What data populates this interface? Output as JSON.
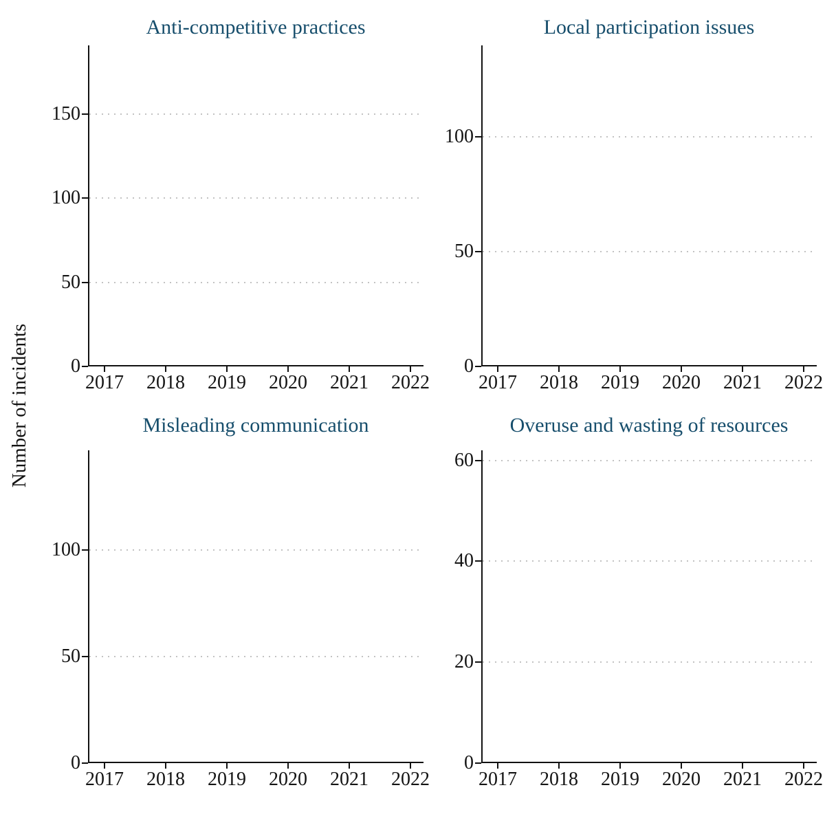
{
  "figure": {
    "ylabel": "Number of incidents",
    "background": "#ffffff",
    "title_color": "#174e6c",
    "axis_color": "#111111",
    "grid_color": "#c2c2c2",
    "tick_label_color": "#141414"
  },
  "chart_data": [
    {
      "type": "line",
      "title": "Anti-competitive practices",
      "xlabel": "",
      "x_tick_labels": [
        "2017",
        "2018",
        "2019",
        "2020",
        "2021",
        "2022"
      ],
      "yticks": [
        0,
        50,
        100,
        150
      ],
      "ylim": [
        0,
        191
      ],
      "grid": "horizontal-dotted",
      "legend": "none",
      "series": []
    },
    {
      "type": "line",
      "title": "Local participation issues",
      "xlabel": "",
      "x_tick_labels": [
        "2017",
        "2018",
        "2019",
        "2020",
        "2021",
        "2022"
      ],
      "yticks": [
        0,
        50,
        100
      ],
      "ylim": [
        0,
        140
      ],
      "grid": "horizontal-dotted",
      "legend": "none",
      "series": []
    },
    {
      "type": "line",
      "title": "Misleading communication",
      "xlabel": "",
      "x_tick_labels": [
        "2017",
        "2018",
        "2019",
        "2020",
        "2021",
        "2022"
      ],
      "yticks": [
        0,
        50,
        100
      ],
      "ylim": [
        0,
        147
      ],
      "grid": "horizontal-dotted",
      "legend": "none",
      "series": []
    },
    {
      "type": "line",
      "title": "Overuse and wasting of resources",
      "xlabel": "",
      "x_tick_labels": [
        "2017",
        "2018",
        "2019",
        "2020",
        "2021",
        "2022"
      ],
      "yticks": [
        0,
        20,
        40,
        60
      ],
      "ylim": [
        0,
        62
      ],
      "grid": "horizontal-dotted",
      "legend": "none",
      "series": []
    }
  ]
}
